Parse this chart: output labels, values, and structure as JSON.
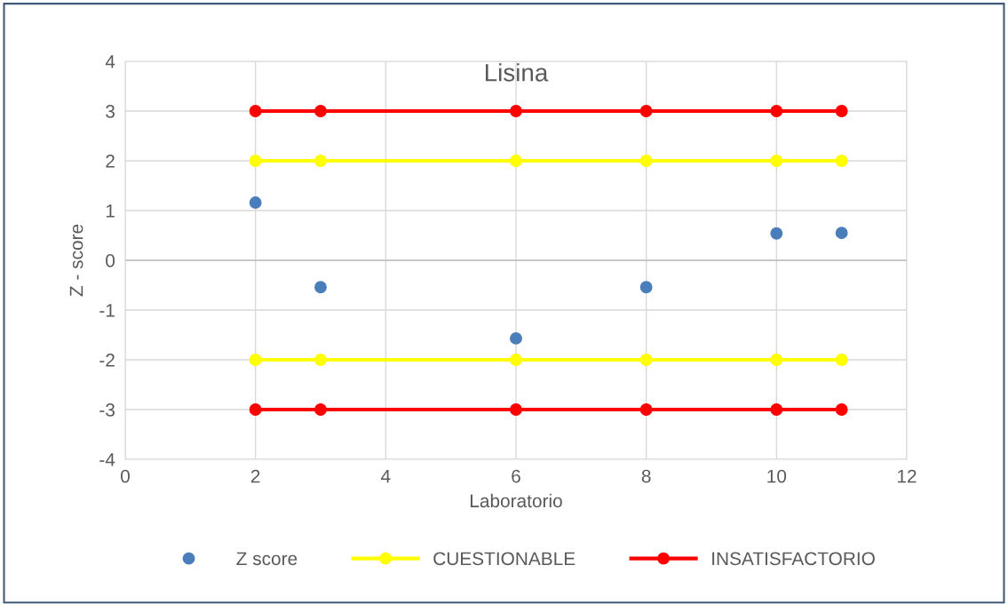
{
  "chart_data": {
    "type": "scatter",
    "title": "Lisina",
    "xlabel": "Laboratorio",
    "ylabel": "Z - score",
    "x": [
      2,
      3,
      6,
      8,
      10,
      11
    ],
    "series": [
      {
        "name": "Z score",
        "color": "#4a7ebb",
        "marker": "circle",
        "values": [
          1.16,
          -0.54,
          -1.57,
          -0.54,
          0.54,
          0.55
        ]
      },
      {
        "name": "CUESTIONABLE",
        "color": "#ffff00",
        "type": "line",
        "marker": "circle",
        "values": [
          2,
          2,
          2,
          2,
          2,
          2
        ]
      },
      {
        "color": "#ffff00",
        "type": "line",
        "marker": "circle",
        "values": [
          -2,
          -2,
          -2,
          -2,
          -2,
          -2
        ]
      },
      {
        "name": "INSATISFACTORIO",
        "color": "#ff0000",
        "type": "line",
        "marker": "circle",
        "values": [
          3,
          3,
          3,
          3,
          3,
          3
        ]
      },
      {
        "color": "#ff0000",
        "type": "line",
        "marker": "circle",
        "values": [
          -3,
          -3,
          -3,
          -3,
          -3,
          -3
        ]
      }
    ],
    "xlim": [
      0,
      12
    ],
    "xticks": [
      0,
      2,
      4,
      6,
      8,
      10,
      12
    ],
    "ylim": [
      -4,
      4
    ],
    "yticks": [
      -4,
      -3,
      -2,
      -1,
      0,
      1,
      2,
      3,
      4
    ],
    "grid": true,
    "legend": "bottom"
  }
}
